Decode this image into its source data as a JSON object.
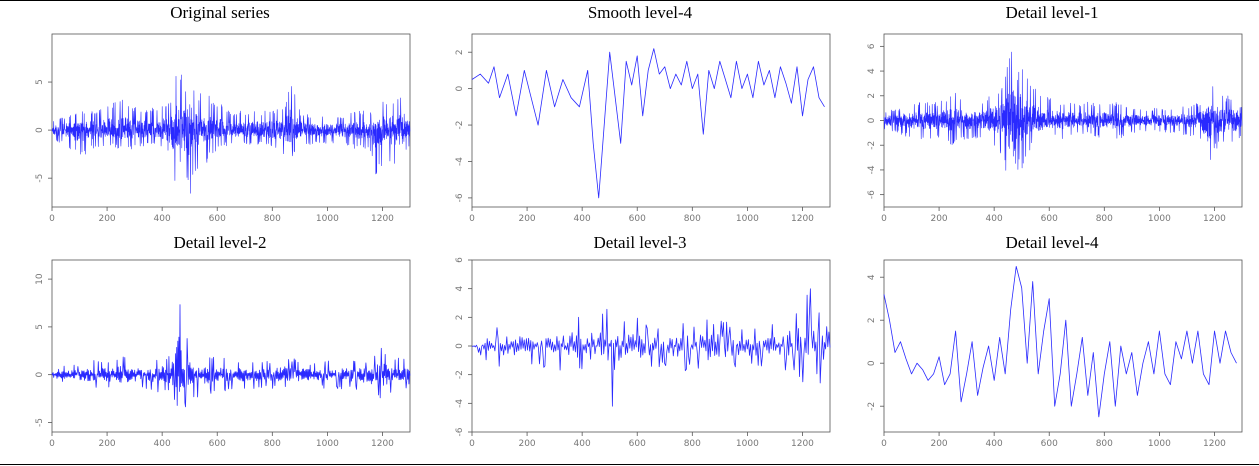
{
  "figure": {
    "line_color": "#2a2aff"
  },
  "chart_data": [
    {
      "type": "line",
      "title": "Original series",
      "xlabel": "",
      "ylabel": "",
      "xlim": [
        0,
        1300
      ],
      "ylim": [
        -8,
        10
      ],
      "xticks": [
        0,
        200,
        400,
        600,
        800,
        1000,
        1200
      ],
      "yticks": [
        -5,
        0,
        5
      ],
      "ytick_labels": [
        "-5",
        "0",
        "5"
      ],
      "x": [
        0,
        50,
        100,
        150,
        200,
        250,
        300,
        350,
        400,
        430,
        450,
        460,
        470,
        480,
        500,
        530,
        560,
        600,
        650,
        700,
        750,
        800,
        850,
        870,
        900,
        950,
        1000,
        1050,
        1100,
        1150,
        1180,
        1200,
        1220,
        1250,
        1280,
        1300
      ],
      "upper": [
        1,
        1.5,
        2,
        2,
        2.5,
        3.5,
        2.5,
        2,
        3,
        3,
        7,
        9,
        6,
        5,
        6,
        4,
        4,
        3,
        2,
        2,
        2,
        2,
        3,
        6,
        2,
        1.5,
        1.5,
        1.5,
        2,
        2,
        2,
        4,
        3,
        4,
        4,
        2
      ],
      "lower": [
        -1,
        -1.5,
        -3,
        -2,
        -1.5,
        -2,
        -2,
        -1.5,
        -2,
        -3,
        -6,
        -8,
        -7,
        -6,
        -7,
        -4,
        -3.5,
        -2,
        -1.5,
        -1.5,
        -1.5,
        -2,
        -3,
        -3,
        -1.5,
        -1.5,
        -1.5,
        -1.5,
        -2,
        -2,
        -5,
        -4,
        -3,
        -4,
        -3,
        -1.5
      ]
    },
    {
      "type": "line",
      "title": "Smooth level-4",
      "xlabel": "",
      "ylabel": "",
      "xlim": [
        0,
        1300
      ],
      "ylim": [
        -6.5,
        3
      ],
      "xticks": [
        0,
        200,
        400,
        600,
        800,
        1000,
        1200
      ],
      "yticks": [
        -6,
        -4,
        -2,
        0,
        2
      ],
      "ytick_labels": [
        "-6",
        "-4",
        "-2",
        "0",
        "2"
      ],
      "x": [
        0,
        30,
        60,
        80,
        100,
        130,
        160,
        190,
        210,
        240,
        270,
        300,
        330,
        360,
        390,
        420,
        440,
        460,
        480,
        500,
        520,
        540,
        560,
        580,
        600,
        620,
        640,
        660,
        680,
        700,
        720,
        740,
        760,
        780,
        800,
        820,
        840,
        860,
        880,
        900,
        920,
        940,
        960,
        980,
        1000,
        1020,
        1040,
        1060,
        1080,
        1100,
        1120,
        1140,
        1160,
        1180,
        1200,
        1220,
        1240,
        1260,
        1280
      ],
      "y": [
        0.5,
        0.8,
        0.3,
        1.2,
        -0.5,
        0.8,
        -1.5,
        1.0,
        -0.2,
        -2.0,
        1.0,
        -1.0,
        0.5,
        -0.5,
        -1.0,
        1.0,
        -3.0,
        -6.0,
        -2.0,
        2.0,
        -0.5,
        -3.0,
        1.5,
        0.2,
        1.8,
        -1.5,
        1.0,
        2.2,
        0.8,
        1.2,
        0.0,
        0.8,
        0.2,
        1.5,
        0.0,
        0.8,
        -2.5,
        1.0,
        0.0,
        1.5,
        0.5,
        -0.5,
        1.5,
        0.0,
        0.8,
        -0.5,
        1.5,
        0.2,
        1.0,
        -0.5,
        1.2,
        0.3,
        -0.8,
        1.2,
        -1.5,
        0.5,
        1.2,
        -0.5,
        -1.0
      ]
    },
    {
      "type": "line",
      "title": "Detail level-1",
      "xlabel": "",
      "ylabel": "",
      "xlim": [
        0,
        1300
      ],
      "ylim": [
        -7,
        7
      ],
      "xticks": [
        0,
        200,
        400,
        600,
        800,
        1000,
        1200
      ],
      "yticks": [
        -6,
        -4,
        -2,
        0,
        2,
        4,
        6
      ],
      "ytick_labels": [
        "-6",
        "-4",
        "-2",
        "0",
        "2",
        "4",
        "6"
      ],
      "x": [
        0,
        50,
        100,
        150,
        200,
        250,
        300,
        350,
        400,
        430,
        450,
        470,
        480,
        500,
        530,
        560,
        600,
        650,
        700,
        750,
        800,
        850,
        900,
        950,
        1000,
        1050,
        1100,
        1150,
        1180,
        1200,
        1220,
        1250,
        1280,
        1300
      ],
      "upper": [
        0.8,
        1,
        1.5,
        1.5,
        1.5,
        2.5,
        1.5,
        1.5,
        2.5,
        3,
        5,
        6.5,
        4,
        5,
        3,
        2.5,
        2,
        1.5,
        1.5,
        1.5,
        1.5,
        1.5,
        1,
        1,
        1,
        1,
        1.2,
        1.5,
        2.5,
        3,
        2,
        2,
        2,
        1
      ],
      "lower": [
        -0.8,
        -1,
        -1.5,
        -1.5,
        -1.5,
        -2,
        -1.5,
        -1.5,
        -2,
        -3,
        -5,
        -6.5,
        -4,
        -4,
        -2.5,
        -2,
        -1.5,
        -1.5,
        -1.2,
        -1.2,
        -1.5,
        -1.5,
        -1,
        -1,
        -1,
        -1,
        -1.2,
        -1.5,
        -4.5,
        -2.5,
        -2,
        -2,
        -2,
        -1
      ]
    },
    {
      "type": "line",
      "title": "Detail level-2",
      "xlabel": "",
      "ylabel": "",
      "xlim": [
        0,
        1300
      ],
      "ylim": [
        -6,
        12
      ],
      "xticks": [
        0,
        200,
        400,
        600,
        800,
        1000,
        1200
      ],
      "yticks": [
        -5,
        0,
        5,
        10
      ],
      "ytick_labels": [
        "-5",
        "0",
        "5",
        "10"
      ],
      "x": [
        0,
        50,
        100,
        150,
        200,
        250,
        300,
        350,
        400,
        430,
        450,
        460,
        470,
        480,
        500,
        530,
        560,
        600,
        650,
        700,
        750,
        800,
        850,
        900,
        950,
        1000,
        1050,
        1100,
        1150,
        1200,
        1220,
        1250,
        1280,
        1300
      ],
      "upper": [
        0.5,
        1,
        1,
        1.5,
        1.5,
        2,
        2,
        1.5,
        2,
        2,
        6,
        11,
        8,
        5,
        4,
        3,
        2,
        2,
        1.5,
        1.5,
        1.5,
        1.5,
        2,
        1.5,
        1.2,
        1.5,
        1.5,
        1.5,
        1.5,
        3,
        2,
        2,
        2,
        1
      ],
      "lower": [
        -0.8,
        -1,
        -1.5,
        -1.5,
        -1.5,
        -2,
        -1.5,
        -1.5,
        -2,
        -2,
        -3,
        -4,
        -5,
        -4,
        -3,
        -2.5,
        -2,
        -2,
        -1.5,
        -1.5,
        -1.5,
        -1.5,
        -1.5,
        -1.5,
        -1.2,
        -1.5,
        -1.5,
        -1.5,
        -2,
        -3,
        -2.5,
        -2,
        -2,
        -1
      ]
    },
    {
      "type": "line",
      "title": "Detail level-3",
      "xlabel": "",
      "ylabel": "",
      "xlim": [
        0,
        1300
      ],
      "ylim": [
        -6,
        6
      ],
      "xticks": [
        0,
        200,
        400,
        600,
        800,
        1000,
        1200
      ],
      "yticks": [
        -6,
        -4,
        -2,
        0,
        2,
        4,
        6
      ],
      "ytick_labels": [
        "-6",
        "-4",
        "-2",
        "0",
        "2",
        "4",
        "6"
      ],
      "x": [
        0,
        50,
        100,
        150,
        200,
        250,
        300,
        350,
        400,
        430,
        460,
        480,
        500,
        520,
        540,
        560,
        580,
        600,
        650,
        700,
        750,
        800,
        850,
        870,
        900,
        950,
        1000,
        1050,
        1100,
        1150,
        1200,
        1220,
        1250,
        1280,
        1300
      ],
      "upper": [
        0,
        0.5,
        1.5,
        1.5,
        1.5,
        1.5,
        1.5,
        2,
        2.5,
        1,
        2,
        2.5,
        3,
        2,
        2.5,
        2,
        2.5,
        2,
        1.5,
        1.5,
        2,
        1.5,
        2,
        4,
        2,
        1.5,
        1.5,
        1.5,
        1.5,
        2.5,
        3,
        5,
        3,
        2,
        1
      ],
      "lower": [
        0,
        -1,
        -1.5,
        -1.5,
        -1.5,
        -1.5,
        -1.5,
        -2,
        -2,
        -3,
        -2,
        -3,
        -5.5,
        -4,
        -2,
        -2.5,
        -2,
        -2,
        -1.5,
        -1.5,
        -2,
        -1.5,
        -2,
        -2.5,
        -2,
        -1.5,
        -1.5,
        -1.5,
        -1.5,
        -2,
        -2.5,
        -3,
        -2.5,
        -3,
        -1
      ]
    },
    {
      "type": "line",
      "title": "Detail level-4",
      "xlabel": "",
      "ylabel": "",
      "xlim": [
        0,
        1300
      ],
      "ylim": [
        -3.2,
        4.8
      ],
      "xticks": [
        0,
        200,
        400,
        600,
        800,
        1000,
        1200
      ],
      "yticks": [
        -2,
        0,
        2,
        4
      ],
      "ytick_labels": [
        "-2",
        "0",
        "2",
        "4"
      ],
      "x": [
        0,
        20,
        40,
        60,
        80,
        100,
        120,
        140,
        160,
        180,
        200,
        220,
        240,
        260,
        280,
        300,
        320,
        340,
        360,
        380,
        400,
        420,
        440,
        460,
        480,
        500,
        520,
        540,
        560,
        580,
        600,
        620,
        640,
        660,
        680,
        700,
        720,
        740,
        760,
        780,
        800,
        820,
        840,
        860,
        880,
        900,
        920,
        940,
        960,
        980,
        1000,
        1020,
        1040,
        1060,
        1080,
        1100,
        1120,
        1140,
        1160,
        1180,
        1200,
        1220,
        1240,
        1260,
        1280
      ],
      "y": [
        3.2,
        2.0,
        0.5,
        1.0,
        0.2,
        -0.5,
        0.0,
        -0.3,
        -0.8,
        -0.5,
        0.3,
        -1.0,
        -0.5,
        1.5,
        -1.8,
        -0.5,
        1.0,
        -1.5,
        -0.2,
        0.8,
        -0.8,
        1.2,
        -0.5,
        2.5,
        4.5,
        3.5,
        0.0,
        3.8,
        -0.5,
        1.5,
        3.0,
        -2.0,
        -0.5,
        2.0,
        -2.0,
        -0.5,
        1.2,
        -1.5,
        0.5,
        -2.5,
        -0.5,
        1.0,
        -2.0,
        0.8,
        -0.5,
        0.5,
        -1.5,
        0.0,
        1.0,
        -0.5,
        1.5,
        -0.5,
        -1.0,
        1.0,
        0.2,
        1.5,
        0.0,
        1.5,
        -0.5,
        -1.0,
        1.5,
        0.0,
        1.5,
        0.5,
        0.0
      ]
    }
  ]
}
